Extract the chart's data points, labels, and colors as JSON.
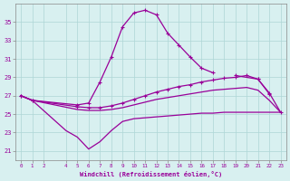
{
  "xlabel": "Windchill (Refroidissement éolien,°C)",
  "background_color": "#d8f0f0",
  "grid_color": "#aed6d6",
  "line_color": "#990099",
  "ylim": [
    20,
    37
  ],
  "yticks": [
    21,
    23,
    25,
    27,
    29,
    31,
    33,
    35
  ],
  "xlim": [
    -0.5,
    23.5
  ],
  "xticks": [
    0,
    1,
    2,
    4,
    5,
    6,
    7,
    8,
    9,
    10,
    11,
    12,
    13,
    14,
    15,
    16,
    17,
    18,
    19,
    20,
    21,
    22,
    23
  ],
  "series_top": {
    "x": [
      0,
      1,
      5,
      6,
      7,
      8,
      9,
      10,
      11,
      12,
      13,
      14,
      15,
      16,
      17,
      18,
      19,
      21,
      22
    ],
    "y": [
      27.0,
      26.5,
      26.0,
      26.2,
      28.5,
      31.2,
      34.5,
      36.0,
      36.3,
      35.8,
      33.8,
      32.5,
      31.2,
      30.0,
      29.5,
      null,
      29.2,
      28.8,
      27.2
    ]
  },
  "series_upper_flat": {
    "x": [
      0,
      1,
      5,
      6,
      7,
      8,
      9,
      10,
      11,
      12,
      13,
      14,
      15,
      16,
      17,
      18,
      19,
      20,
      21,
      22,
      23
    ],
    "y": [
      27.0,
      26.5,
      25.8,
      25.7,
      25.7,
      25.9,
      26.2,
      26.6,
      27.0,
      27.4,
      27.7,
      28.0,
      28.2,
      28.5,
      28.7,
      28.9,
      29.0,
      29.2,
      28.8,
      27.3,
      25.2
    ]
  },
  "series_lower_flat": {
    "x": [
      0,
      1,
      5,
      6,
      7,
      8,
      9,
      10,
      11,
      12,
      13,
      14,
      15,
      16,
      17,
      18,
      19,
      20,
      21,
      22,
      23
    ],
    "y": [
      27.0,
      26.5,
      25.5,
      25.4,
      25.4,
      25.5,
      25.7,
      26.0,
      26.3,
      26.6,
      26.8,
      27.0,
      27.2,
      27.4,
      27.6,
      27.7,
      27.8,
      27.9,
      27.6,
      26.5,
      25.2
    ]
  },
  "series_bottom": {
    "x": [
      0,
      1,
      4,
      5,
      6,
      7,
      8,
      9,
      10,
      11,
      12,
      13,
      14,
      15,
      16,
      17,
      18,
      19,
      20,
      21,
      22,
      23
    ],
    "y": [
      27.0,
      26.5,
      23.2,
      22.5,
      21.2,
      22.0,
      23.2,
      24.2,
      24.5,
      24.6,
      24.7,
      24.8,
      24.9,
      25.0,
      25.1,
      25.1,
      25.2,
      25.2,
      25.2,
      25.2,
      25.2,
      25.2
    ]
  }
}
